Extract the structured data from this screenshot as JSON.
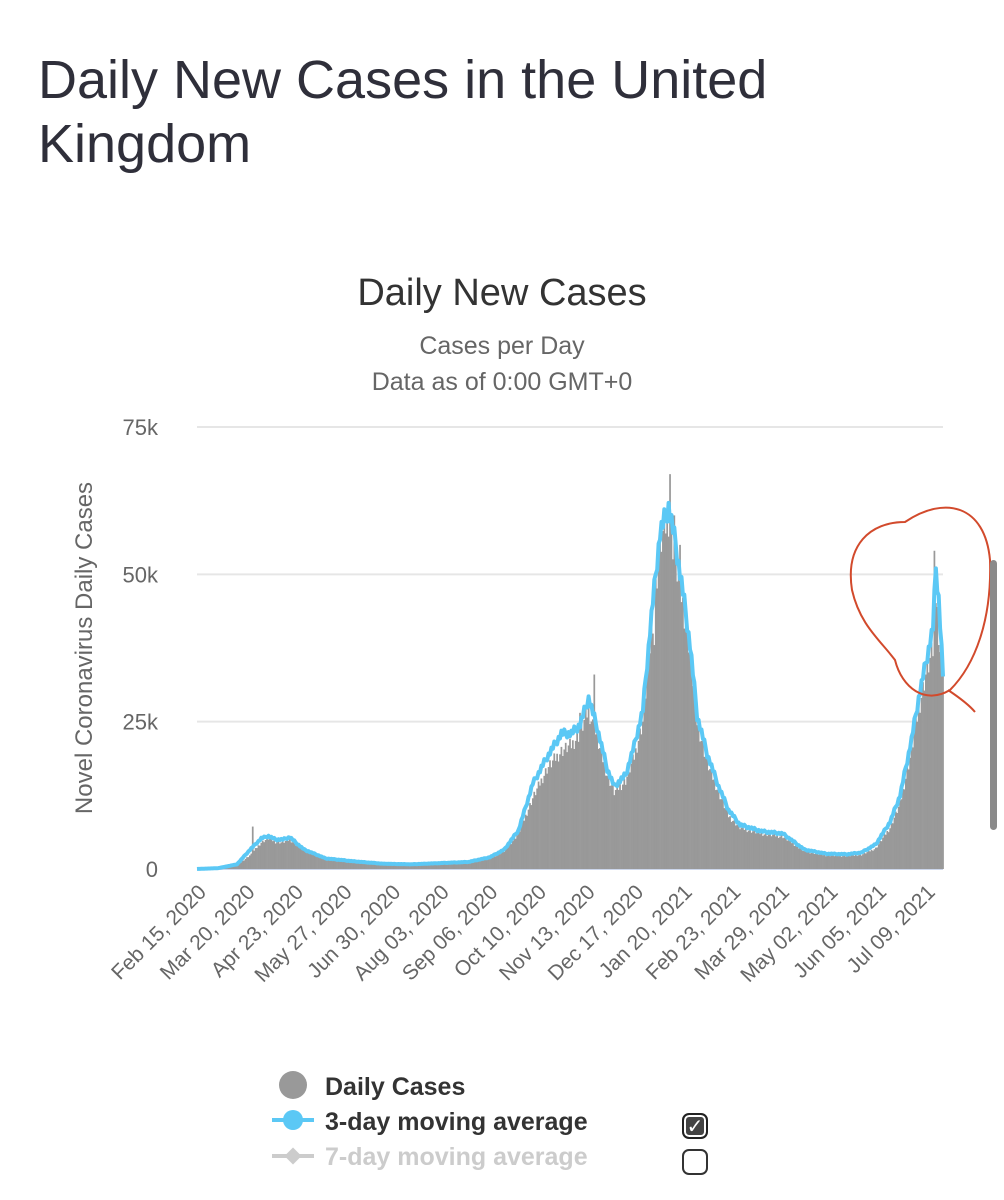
{
  "page": {
    "title": "Daily New Cases in the United Kingdom"
  },
  "chart_data": {
    "type": "bar",
    "title": "Daily New Cases",
    "subtitle": "Cases per Day",
    "note": "Data as of 0:00 GMT+0",
    "ylabel": "Novel Coronavirus Daily Cases",
    "ylim": [
      0,
      75000
    ],
    "yticks": [
      {
        "value": 0,
        "label": "0"
      },
      {
        "value": 25000,
        "label": "25k"
      },
      {
        "value": 50000,
        "label": "50k"
      },
      {
        "value": 75000,
        "label": "75k"
      }
    ],
    "x_tick_labels": [
      "Feb 15, 2020",
      "Mar 20, 2020",
      "Apr 23, 2020",
      "May 27, 2020",
      "Jun 30, 2020",
      "Aug 03, 2020",
      "Sep 06, 2020",
      "Oct 10, 2020",
      "Nov 13, 2020",
      "Dec 17, 2020",
      "Jan 20, 2021",
      "Feb 23, 2021",
      "Mar 29, 2021",
      "May 02, 2021",
      "Jun 05, 2021",
      "Jul 09, 2021"
    ],
    "x_start": "Feb 15, 2020",
    "x_end": "Jul 26, 2021",
    "series": [
      {
        "name": "Daily Cases",
        "type": "bar",
        "color": "#999999",
        "keypoints": [
          [
            0,
            0
          ],
          [
            15,
            100
          ],
          [
            28,
            600
          ],
          [
            38,
            2500
          ],
          [
            45,
            4500
          ],
          [
            50,
            5200
          ],
          [
            55,
            4600
          ],
          [
            60,
            4500
          ],
          [
            65,
            5000
          ],
          [
            70,
            4000
          ],
          [
            75,
            3200
          ],
          [
            90,
            1700
          ],
          [
            110,
            1200
          ],
          [
            130,
            800
          ],
          [
            150,
            700
          ],
          [
            170,
            900
          ],
          [
            190,
            1100
          ],
          [
            205,
            1800
          ],
          [
            215,
            3000
          ],
          [
            225,
            6000
          ],
          [
            235,
            12000
          ],
          [
            245,
            17000
          ],
          [
            255,
            20000
          ],
          [
            262,
            21000
          ],
          [
            268,
            23000
          ],
          [
            274,
            27000
          ],
          [
            280,
            22000
          ],
          [
            287,
            16000
          ],
          [
            292,
            13000
          ],
          [
            300,
            15000
          ],
          [
            306,
            19000
          ],
          [
            312,
            25000
          ],
          [
            318,
            40000
          ],
          [
            324,
            55000
          ],
          [
            330,
            60000
          ],
          [
            335,
            52000
          ],
          [
            340,
            45000
          ],
          [
            345,
            37000
          ],
          [
            350,
            25000
          ],
          [
            357,
            18000
          ],
          [
            365,
            13000
          ],
          [
            372,
            9000
          ],
          [
            380,
            7000
          ],
          [
            395,
            6000
          ],
          [
            410,
            5500
          ],
          [
            425,
            3000
          ],
          [
            440,
            2300
          ],
          [
            455,
            2200
          ],
          [
            465,
            2400
          ],
          [
            475,
            3500
          ],
          [
            485,
            7000
          ],
          [
            492,
            11000
          ],
          [
            500,
            20000
          ],
          [
            505,
            27000
          ],
          [
            510,
            33000
          ],
          [
            515,
            37000
          ],
          [
            517,
            48000
          ],
          [
            519,
            42000
          ],
          [
            522,
            32000
          ]
        ],
        "spikes": [
          [
            39,
            7200
          ],
          [
            268,
            26500
          ],
          [
            278,
            33000
          ],
          [
            320,
            38000
          ],
          [
            331,
            67000
          ],
          [
            334,
            60000
          ],
          [
            338,
            55000
          ],
          [
            516,
            54000
          ],
          [
            519,
            38000
          ]
        ]
      },
      {
        "name": "3-day moving average",
        "type": "line",
        "color": "#5bc8f5",
        "keypoints": [
          [
            0,
            0
          ],
          [
            15,
            150
          ],
          [
            28,
            800
          ],
          [
            38,
            3500
          ],
          [
            45,
            5200
          ],
          [
            50,
            5600
          ],
          [
            55,
            5000
          ],
          [
            60,
            5000
          ],
          [
            65,
            5400
          ],
          [
            70,
            4300
          ],
          [
            75,
            3300
          ],
          [
            90,
            1800
          ],
          [
            110,
            1300
          ],
          [
            130,
            900
          ],
          [
            150,
            800
          ],
          [
            170,
            1000
          ],
          [
            190,
            1200
          ],
          [
            205,
            2000
          ],
          [
            215,
            3300
          ],
          [
            225,
            6600
          ],
          [
            235,
            14500
          ],
          [
            245,
            19000
          ],
          [
            255,
            23000
          ],
          [
            262,
            23000
          ],
          [
            268,
            24500
          ],
          [
            274,
            29000
          ],
          [
            280,
            24000
          ],
          [
            287,
            17000
          ],
          [
            292,
            14000
          ],
          [
            300,
            16000
          ],
          [
            306,
            21000
          ],
          [
            312,
            27000
          ],
          [
            318,
            43000
          ],
          [
            324,
            57000
          ],
          [
            330,
            61500
          ],
          [
            335,
            55000
          ],
          [
            340,
            47000
          ],
          [
            345,
            38000
          ],
          [
            350,
            26000
          ],
          [
            357,
            19500
          ],
          [
            365,
            14000
          ],
          [
            372,
            10000
          ],
          [
            380,
            7500
          ],
          [
            395,
            6400
          ],
          [
            410,
            6000
          ],
          [
            425,
            3300
          ],
          [
            440,
            2600
          ],
          [
            455,
            2500
          ],
          [
            465,
            2800
          ],
          [
            475,
            4200
          ],
          [
            485,
            8000
          ],
          [
            492,
            12500
          ],
          [
            500,
            22000
          ],
          [
            505,
            29000
          ],
          [
            510,
            35000
          ],
          [
            515,
            41000
          ],
          [
            517,
            51000
          ],
          [
            519,
            46000
          ],
          [
            522,
            33000
          ]
        ]
      },
      {
        "name": "7-day moving average",
        "type": "line",
        "color": "#cccccc",
        "visible": false
      }
    ],
    "legend": [
      {
        "label": "Daily Cases",
        "color": "#999999",
        "marker": "circle",
        "checked": null
      },
      {
        "label": "3-day moving average",
        "color": "#5bc8f5",
        "marker": "line-circle",
        "checked": true
      },
      {
        "label": "7-day moving average",
        "color": "#cccccc",
        "marker": "line-diamond",
        "checked": false
      }
    ],
    "annotation": {
      "type": "hand-drawn circle",
      "color": "#d24a2c",
      "target": "Jul 2021 peak"
    }
  }
}
